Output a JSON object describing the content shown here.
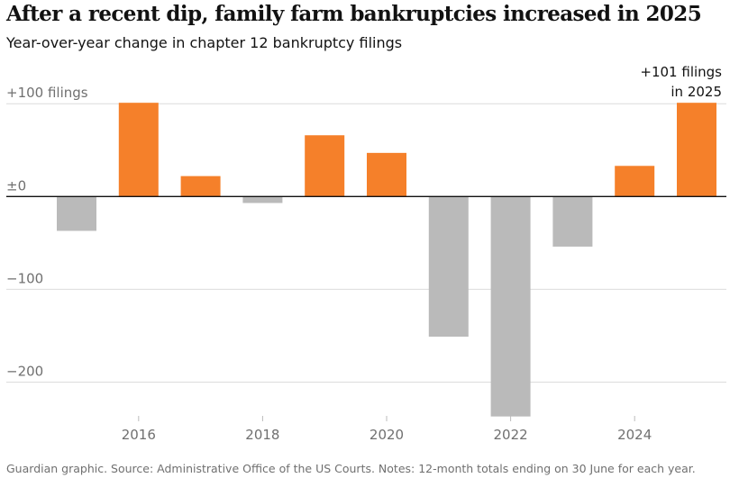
{
  "title": "After a recent dip, family farm bankruptcies increased in 2025",
  "subtitle": "Year-over-year change in chapter 12 bankruptcy filings",
  "footer": "Guardian graphic. Source: Administrative Office of the US Courts. Notes: 12-month totals ending on 30 June for each year.",
  "chart_data": {
    "type": "bar",
    "title": "After a recent dip, family farm bankruptcies increased in 2025",
    "subtitle": "Year-over-year change in chapter 12 bankruptcy filings",
    "categories": [
      2015,
      2016,
      2017,
      2018,
      2019,
      2020,
      2021,
      2022,
      2023,
      2024,
      2025
    ],
    "values": [
      -37,
      101,
      22,
      -7,
      66,
      47,
      -151,
      -237,
      -54,
      33,
      101
    ],
    "ylim": [
      -240,
      100
    ],
    "yticks": [
      100,
      0,
      -100,
      -200
    ],
    "ytick_labels": [
      "+100 filings",
      "±0",
      "−100",
      "−200"
    ],
    "xticks": [
      "2016",
      "2018",
      "2020",
      "2022",
      "2024"
    ],
    "annotation": [
      "+101 filings",
      "in 2025"
    ],
    "grid": true,
    "colors": {
      "positive": "#f5802a",
      "negative": "#bababa",
      "grid": "#dcdcdc",
      "zero": "#121212"
    }
  }
}
